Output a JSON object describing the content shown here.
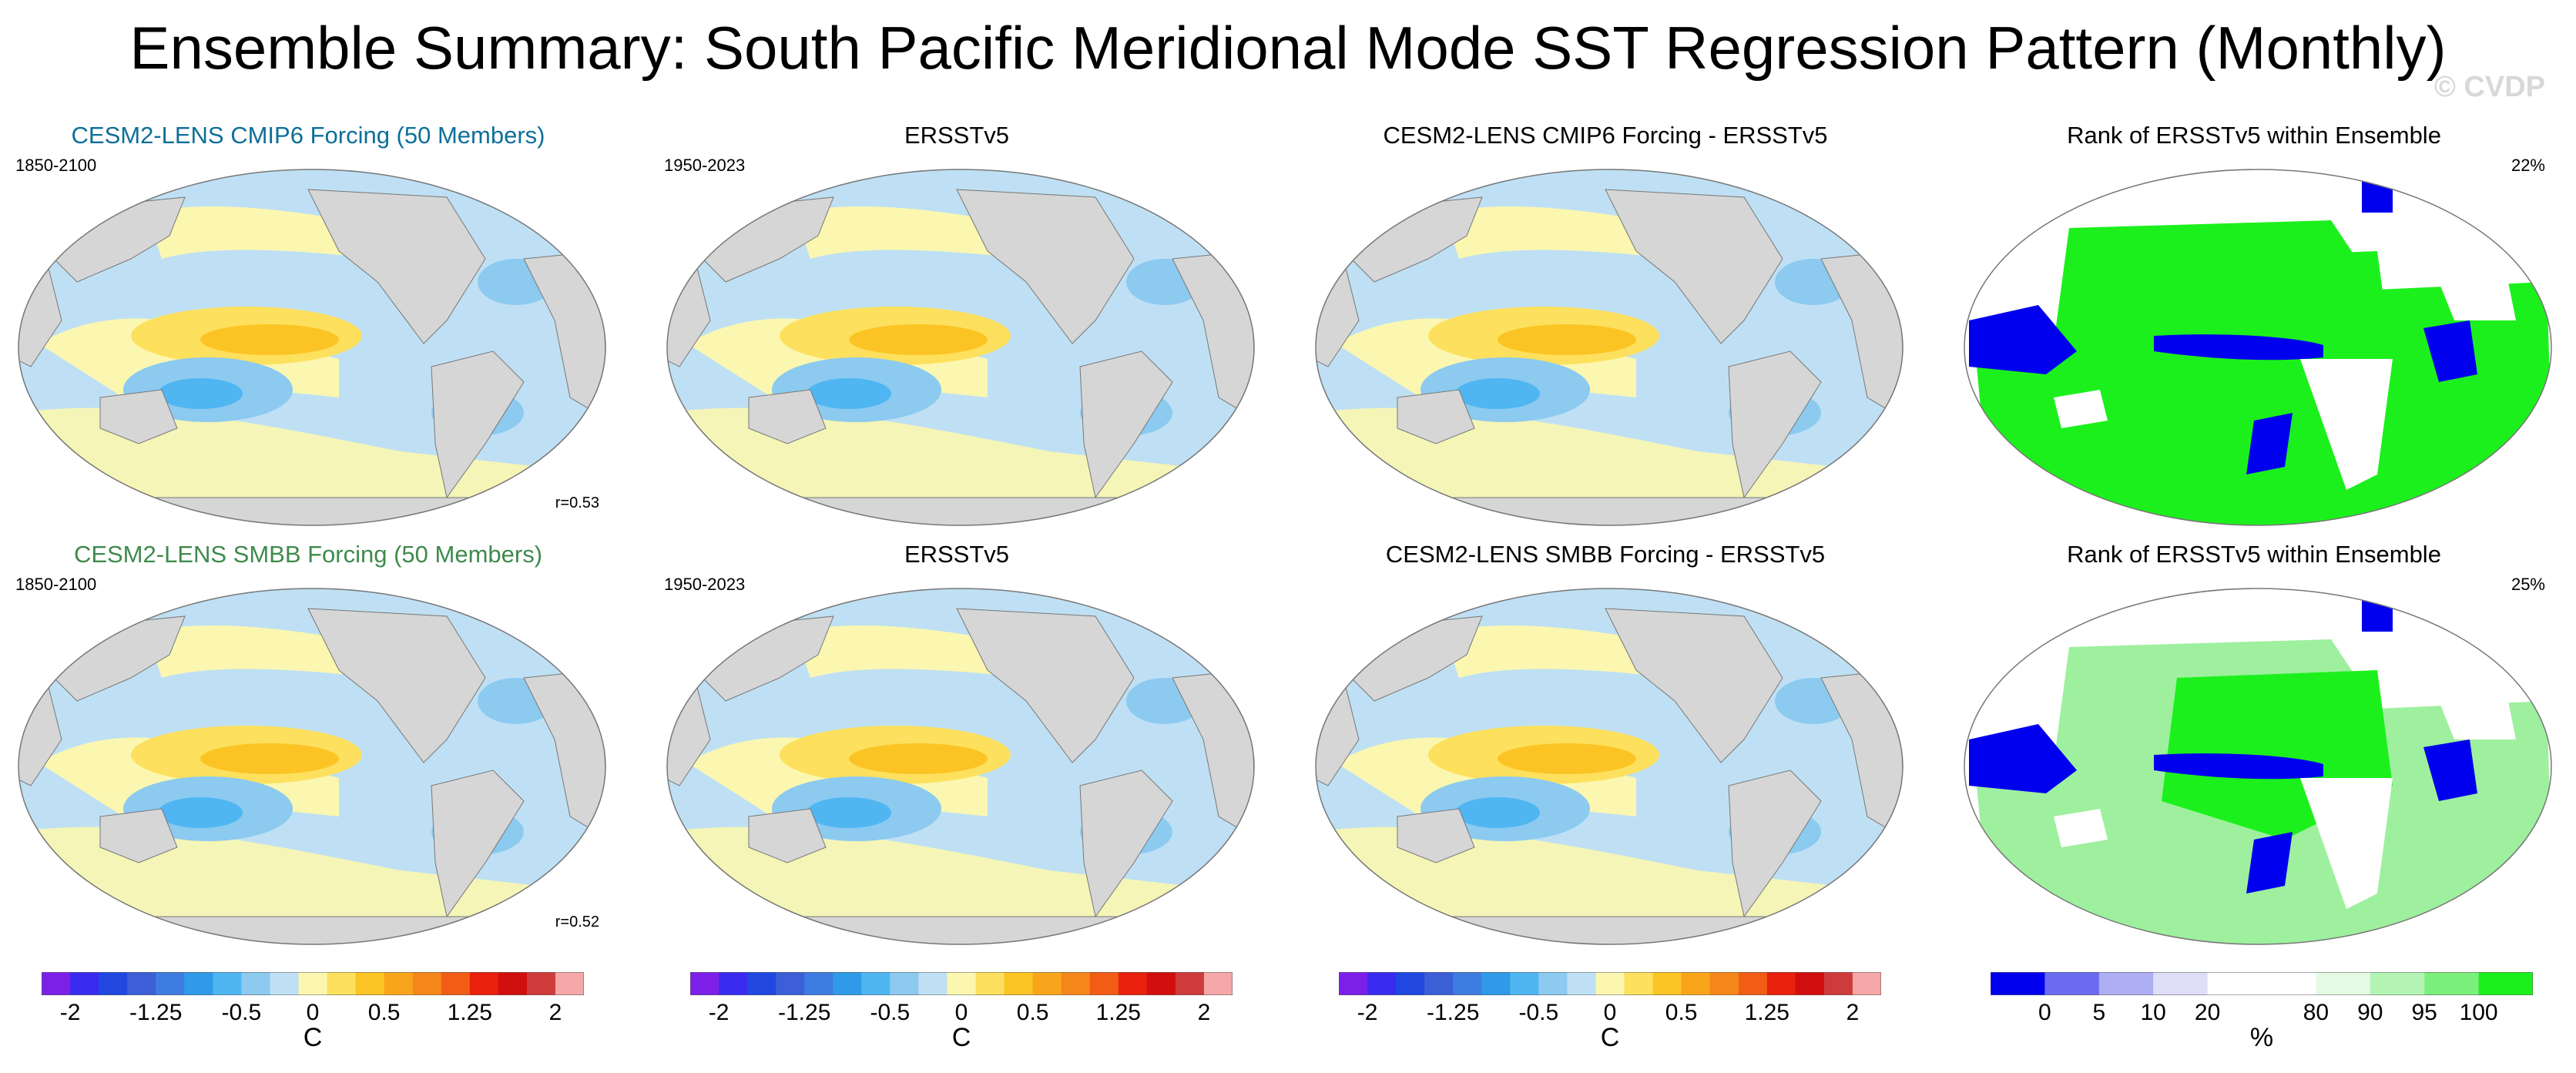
{
  "title": "Ensemble Summary: South Pacific Meridional Mode SST Regression Pattern (Monthly)",
  "watermark": "© CVDP",
  "rows": [
    {
      "panels": [
        {
          "title": "CESM2-LENS CMIP6 Forcing (50 Members)",
          "title_color": "#0d6f99",
          "period": "1850-2100",
          "corr": "r=0.53",
          "kind": "sst"
        },
        {
          "title": "ERSSTv5",
          "period": "1950-2023",
          "kind": "sst"
        },
        {
          "title": "CESM2-LENS CMIP6 Forcing - ERSSTv5",
          "kind": "sst"
        },
        {
          "title": "Rank of ERSSTv5 within Ensemble",
          "pct": "22%",
          "kind": "rank"
        }
      ]
    },
    {
      "panels": [
        {
          "title": "CESM2-LENS SMBB Forcing (50 Members)",
          "title_color": "#3f8a4d",
          "period": "1850-2100",
          "corr": "r=0.52",
          "kind": "sst"
        },
        {
          "title": "ERSSTv5",
          "period": "1950-2023",
          "kind": "sst"
        },
        {
          "title": "CESM2-LENS SMBB Forcing - ERSSTv5",
          "kind": "sst"
        },
        {
          "title": "Rank of ERSSTv5 within Ensemble",
          "pct": "25%",
          "kind": "rank"
        }
      ]
    }
  ],
  "colorbars": [
    {
      "ticks": [
        "-2",
        "-1.25",
        "-0.5",
        "0",
        "0.5",
        "1.25",
        "2"
      ],
      "unit": "C",
      "colors": [
        "#7c20e8",
        "#3a2af0",
        "#2048e0",
        "#3c5fd8",
        "#3d7ce0",
        "#2f9ae8",
        "#4fb6f2",
        "#8ccaf0",
        "#bfe0f4",
        "#fbf7b0",
        "#fde05e",
        "#fbc424",
        "#f9a51c",
        "#f5861a",
        "#f15d14",
        "#e8200c",
        "#d00e0e",
        "#ce3b3b",
        "#f6a7a7"
      ]
    },
    {
      "ticks": [
        "-2",
        "-1.25",
        "-0.5",
        "0",
        "0.5",
        "1.25",
        "2"
      ],
      "unit": "C",
      "colors": [
        "#7c20e8",
        "#3a2af0",
        "#2048e0",
        "#3c5fd8",
        "#3d7ce0",
        "#2f9ae8",
        "#4fb6f2",
        "#8ccaf0",
        "#bfe0f4",
        "#fbf7b0",
        "#fde05e",
        "#fbc424",
        "#f9a51c",
        "#f5861a",
        "#f15d14",
        "#e8200c",
        "#d00e0e",
        "#ce3b3b",
        "#f6a7a7"
      ]
    },
    {
      "ticks": [
        "-2",
        "-1.25",
        "-0.5",
        "0",
        "0.5",
        "1.25",
        "2"
      ],
      "unit": "C",
      "colors": [
        "#7c20e8",
        "#3a2af0",
        "#2048e0",
        "#3c5fd8",
        "#3d7ce0",
        "#2f9ae8",
        "#4fb6f2",
        "#8ccaf0",
        "#bfe0f4",
        "#fbf7b0",
        "#fde05e",
        "#fbc424",
        "#f9a51c",
        "#f5861a",
        "#f15d14",
        "#e8200c",
        "#d00e0e",
        "#ce3b3b",
        "#f6a7a7"
      ]
    },
    {
      "ticks": [
        "0",
        "5",
        "10",
        "20",
        "80",
        "90",
        "95",
        "100"
      ],
      "unit": "%",
      "colors": [
        "#0000ee",
        "#6b6bf0",
        "#aeaef4",
        "#dedef8",
        "#ffffff",
        "#ffffff",
        "#e4fae4",
        "#b4f4b4",
        "#7cf07c",
        "#1cf01c"
      ]
    }
  ]
}
